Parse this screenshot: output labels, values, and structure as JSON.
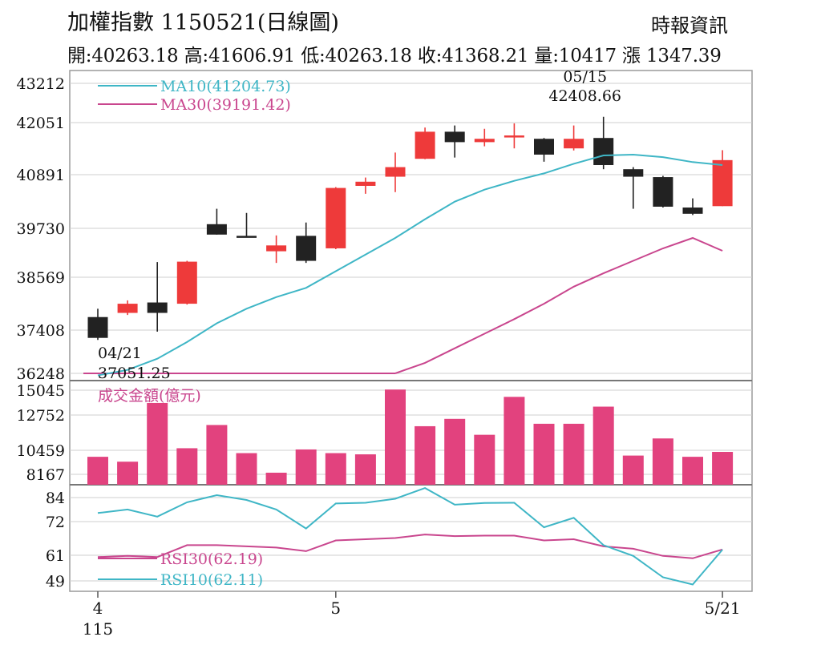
{
  "header": {
    "title": "加權指數 1150521(日線圖)",
    "source": "時報資訊",
    "ohlc": "開:40263.18 高:41606.91 低:40263.18 收:41368.21 量:10417 漲 1347.39"
  },
  "colors": {
    "up": "#ee3a3a",
    "down": "#222222",
    "ma10": "#3fb6c6",
    "ma30": "#c9468e",
    "volume": "#e2427e",
    "rsi10": "#3fb6c6",
    "rsi30": "#c9468e",
    "grid": "#cfcfcf"
  },
  "chart_data": {
    "type": "candlestick",
    "x_ticks": [
      {
        "index": 0,
        "label": "4"
      },
      {
        "index": 8,
        "label": "5"
      },
      {
        "index": 21,
        "label": "5/21"
      }
    ],
    "x_year_label": "115",
    "price_panel": {
      "y_ticks": [
        "43212",
        "42051",
        "40891",
        "39730",
        "38569",
        "37408",
        "36248"
      ],
      "y_range": [
        36248,
        43212
      ],
      "candles": [
        {
          "open": 37600,
          "high": 37800,
          "low": 37051,
          "close": 37100
        },
        {
          "open": 37700,
          "high": 38000,
          "low": 37650,
          "close": 37920
        },
        {
          "open": 37950,
          "high": 38920,
          "low": 37250,
          "close": 37700
        },
        {
          "open": 37920,
          "high": 38950,
          "low": 37900,
          "close": 38930
        },
        {
          "open": 39830,
          "high": 40200,
          "low": 39580,
          "close": 39580
        },
        {
          "open": 39550,
          "high": 40100,
          "low": 39530,
          "close": 39520
        },
        {
          "open": 39180,
          "high": 39560,
          "low": 38900,
          "close": 39320
        },
        {
          "open": 39550,
          "high": 39870,
          "low": 38900,
          "close": 38950
        },
        {
          "open": 39250,
          "high": 40720,
          "low": 39230,
          "close": 40700
        },
        {
          "open": 40750,
          "high": 40950,
          "low": 40560,
          "close": 40850
        },
        {
          "open": 40970,
          "high": 41550,
          "low": 40600,
          "close": 41200
        },
        {
          "open": 41400,
          "high": 42150,
          "low": 41390,
          "close": 42050
        },
        {
          "open": 42050,
          "high": 42200,
          "low": 41430,
          "close": 41800
        },
        {
          "open": 41800,
          "high": 42120,
          "low": 41700,
          "close": 41880
        },
        {
          "open": 41960,
          "high": 42250,
          "low": 41650,
          "close": 41960
        },
        {
          "open": 41880,
          "high": 41900,
          "low": 41330,
          "close": 41500
        },
        {
          "open": 41650,
          "high": 42200,
          "low": 41600,
          "close": 41880
        },
        {
          "open": 41900,
          "high": 42408.66,
          "low": 41150,
          "close": 41250
        },
        {
          "open": 41150,
          "high": 41200,
          "low": 40200,
          "close": 40970
        },
        {
          "open": 40960,
          "high": 40990,
          "low": 40230,
          "close": 40250
        },
        {
          "open": 40230,
          "high": 40450,
          "low": 40050,
          "close": 40080
        },
        {
          "open": 40263.18,
          "high": 41606.91,
          "low": 40263.18,
          "close": 41368.21
        }
      ],
      "ma10": {
        "label": "MA10(41204.73)",
        "values": [
          36200,
          36330,
          36600,
          37000,
          37450,
          37800,
          38080,
          38300,
          38700,
          39100,
          39500,
          39950,
          40370,
          40660,
          40870,
          41050,
          41280,
          41480,
          41500,
          41440,
          41320,
          41250
        ]
      },
      "ma30": {
        "label": "MA30(39191.42)",
        "values": [
          null,
          null,
          null,
          null,
          null,
          null,
          null,
          null,
          null,
          null,
          36248,
          36500,
          36850,
          37200,
          37550,
          37920,
          38330,
          38650,
          38950,
          39250,
          39500,
          39191.42
        ]
      },
      "annotations": [
        {
          "index": 0,
          "price": 37051.25,
          "date": "04/21",
          "value": "37051.25",
          "position": "below"
        },
        {
          "index": 17,
          "price": 42408.66,
          "date": "05/15",
          "value": "42408.66",
          "position": "above"
        }
      ]
    },
    "volume_panel": {
      "title": "成交金額(億元)",
      "y_ticks": [
        "15045",
        "12752",
        "10459",
        "8167"
      ],
      "y_range": [
        7400,
        15045
      ],
      "values": [
        9600,
        9200,
        14000,
        10300,
        12200,
        9900,
        8300,
        10200,
        9900,
        9800,
        15100,
        12100,
        12700,
        11400,
        14500,
        12300,
        12300,
        13700,
        9700,
        11100,
        9600,
        10000
      ]
    },
    "rsi_panel": {
      "y_ticks": [
        "84",
        "72",
        "61",
        "49"
      ],
      "y_range": [
        45,
        88
      ],
      "rsi10": {
        "label": "RSI10(62.11)",
        "values": [
          77.5,
          79,
          76,
          82,
          85,
          83,
          79,
          71,
          81.5,
          81.8,
          83.5,
          88,
          81,
          81.7,
          81.8,
          71.5,
          75.5,
          64,
          59.5,
          50.5,
          47.5,
          62.11
        ]
      },
      "rsi30": {
        "label": "RSI30(62.19)",
        "values": [
          59,
          59.5,
          59,
          64,
          64,
          63.5,
          63,
          61.5,
          66,
          66.5,
          67,
          68.5,
          67.8,
          68,
          68,
          66,
          66.5,
          63.5,
          62.5,
          59.5,
          58.5,
          62.19
        ]
      }
    }
  }
}
